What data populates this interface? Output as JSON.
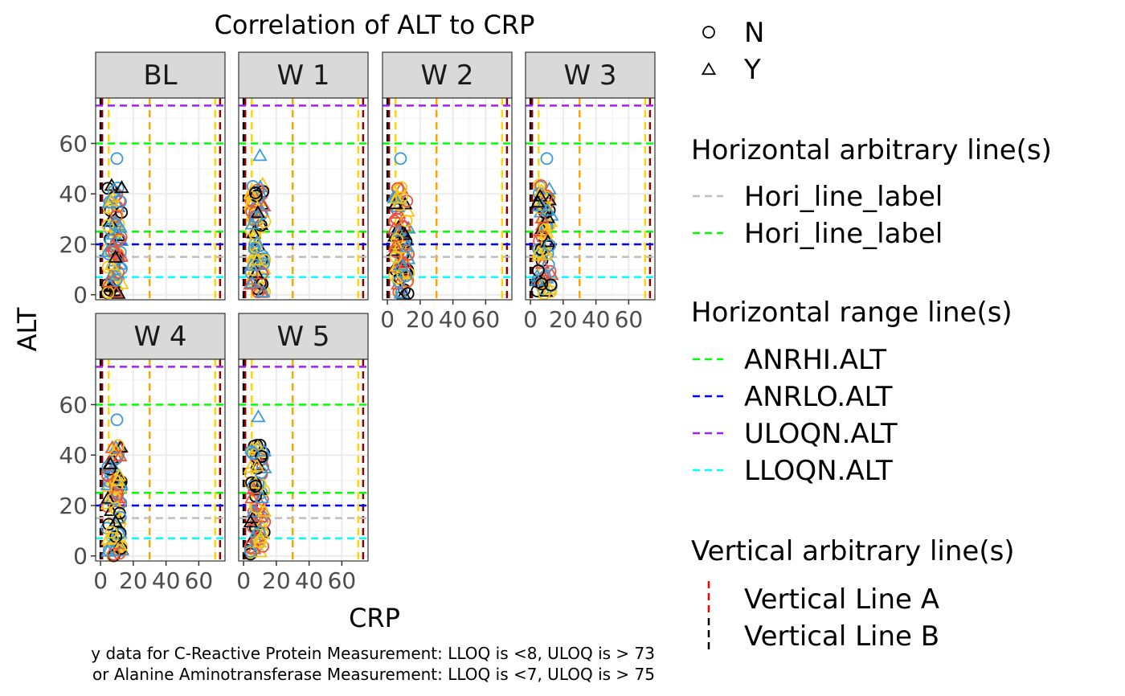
{
  "chart_data": {
    "type": "scatter",
    "title": "Correlation of ALT to CRP",
    "xlabel": "CRP",
    "ylabel": "ALT",
    "xlim": [
      -3,
      76
    ],
    "ylim": [
      -2,
      78
    ],
    "x_ticks": [
      0,
      20,
      40,
      60
    ],
    "y_ticks": [
      0,
      20,
      40,
      60
    ],
    "x_tick_labels": [
      "0",
      "20",
      "40",
      "60"
    ],
    "y_tick_labels": [
      "0",
      "20",
      "40",
      "60"
    ],
    "grid": true,
    "facets": [
      {
        "label": "BL",
        "outlier": {
          "x": 10,
          "y": 54,
          "shape": "circle"
        }
      },
      {
        "label": "W 1",
        "outlier": {
          "x": 10,
          "y": 55,
          "shape": "triangle"
        }
      },
      {
        "label": "W 2",
        "outlier": {
          "x": 8,
          "y": 54,
          "shape": "circle"
        }
      },
      {
        "label": "W 3",
        "outlier": {
          "x": 10,
          "y": 54,
          "shape": "circle"
        }
      },
      {
        "label": "W 4",
        "outlier": {
          "x": 10,
          "y": 54,
          "shape": "circle"
        }
      },
      {
        "label": "W 5",
        "outlier": {
          "x": 9,
          "y": 55,
          "shape": "triangle"
        }
      }
    ],
    "horizontal_lines": [
      {
        "y": 15,
        "color": "#bebebe",
        "name": "Hori_line_label",
        "group": "arbitrary"
      },
      {
        "y": 25,
        "color": "#00ff00",
        "name": "Hori_line_label",
        "group": "arbitrary"
      },
      {
        "y": 60,
        "color": "#00ff00",
        "name": "ANRHI.ALT",
        "group": "range"
      },
      {
        "y": 20,
        "color": "#0000ff",
        "name": "ANRLO.ALT",
        "group": "range"
      },
      {
        "y": 75,
        "color": "#a020f0",
        "name": "ULOQN.ALT",
        "group": "range"
      },
      {
        "y": 7,
        "color": "#00ffff",
        "name": "LLOQN.ALT",
        "group": "range"
      }
    ],
    "vertical_lines": [
      {
        "x": 0,
        "color": "#000000"
      },
      {
        "x": 1,
        "color": "#8b0000"
      },
      {
        "x": 5,
        "color": "#ffd700"
      },
      {
        "x": 30,
        "color": "#ffa500"
      },
      {
        "x": 70,
        "color": "#ffd700"
      },
      {
        "x": 73,
        "color": "#8b0000"
      }
    ],
    "legend": {
      "shape": {
        "title": "",
        "items": [
          {
            "label": "N",
            "shape": "circle"
          },
          {
            "label": "Y",
            "shape": "triangle"
          }
        ]
      },
      "horizontal_arbitrary": {
        "title": "Horizontal arbitrary line(s)",
        "items": [
          {
            "label": "Hori_line_label",
            "color": "#bebebe"
          },
          {
            "label": "Hori_line_label",
            "color": "#00ff00"
          }
        ]
      },
      "horizontal_range": {
        "title": "Horizontal range line(s)",
        "items": [
          {
            "label": "ANRHI.ALT",
            "color": "#00ff00"
          },
          {
            "label": "ANRLO.ALT",
            "color": "#0000ff"
          },
          {
            "label": "ULOQN.ALT",
            "color": "#a020f0"
          },
          {
            "label": "LLOQN.ALT",
            "color": "#00ffff"
          }
        ]
      },
      "vertical_arbitrary": {
        "title": "Vertical arbitrary line(s)",
        "items": [
          {
            "label": "Vertical Line A",
            "color": "#ff0000"
          },
          {
            "label": "Vertical Line B",
            "color": "#000000"
          }
        ]
      }
    },
    "caption": [
      "y data for C-Reactive Protein Measurement: LLOQ is <8, ULOQ is > 73",
      "or Alanine Aminotransferase Measurement: LLOQ is <7, ULOQ is > 75"
    ],
    "point_colors": [
      "#000000",
      "#e8533f",
      "#3b9ad9",
      "#f5c518"
    ]
  }
}
